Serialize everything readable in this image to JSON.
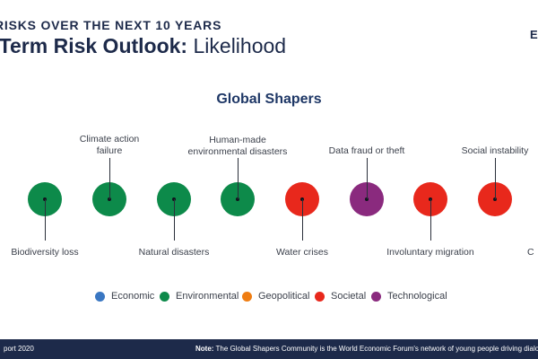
{
  "header": {
    "kicker": "RISKS OVER THE NEXT 10 YEARS",
    "title_bold": "-Term Risk Outlook:",
    "title_light": " Likelihood",
    "brand_letter": "E"
  },
  "section_title": "Global Shapers",
  "risks": [
    {
      "label": "Biodiversity loss",
      "category": "Environmental"
    },
    {
      "label": "Climate action failure",
      "category": "Environmental"
    },
    {
      "label": "Natural disasters",
      "category": "Environmental"
    },
    {
      "label": "Human-made environmental disasters",
      "category": "Environmental"
    },
    {
      "label": "Water crises",
      "category": "Societal"
    },
    {
      "label": "Data fraud or theft",
      "category": "Technological"
    },
    {
      "label": "Involuntary migration",
      "category": "Societal"
    },
    {
      "label": "Social instability",
      "category": "Societal"
    },
    {
      "label": "C",
      "category": ""
    }
  ],
  "labels": {
    "biodiversity": "Biodiversity loss",
    "climate_1": "Climate action",
    "climate_2": "failure",
    "natural": "Natural disasters",
    "humanmade_1": "Human-made",
    "humanmade_2": "environmental disasters",
    "water": "Water crises",
    "datafraud": "Data fraud or theft",
    "migration": "Involuntary migration",
    "social": "Social instability",
    "cutoff": "C"
  },
  "legend": [
    {
      "label": "Economic",
      "color": "#3a77c2"
    },
    {
      "label": "Environmental",
      "color": "#0d8a4a"
    },
    {
      "label": "Geopolitical",
      "color": "#ef7d12"
    },
    {
      "label": "Societal",
      "color": "#e8281c"
    },
    {
      "label": "Technological",
      "color": "#8a2a7e"
    }
  ],
  "colors": {
    "environmental": "#0d8a4a",
    "societal": "#e8281c",
    "technological": "#8a2a7e",
    "navy": "#1d2a4a"
  },
  "footer": {
    "left": "port 2020",
    "note_bold": "Note:",
    "note_text": " The Global Shapers Community is the World Economic Forum's network of young people driving dialogue, ac"
  }
}
